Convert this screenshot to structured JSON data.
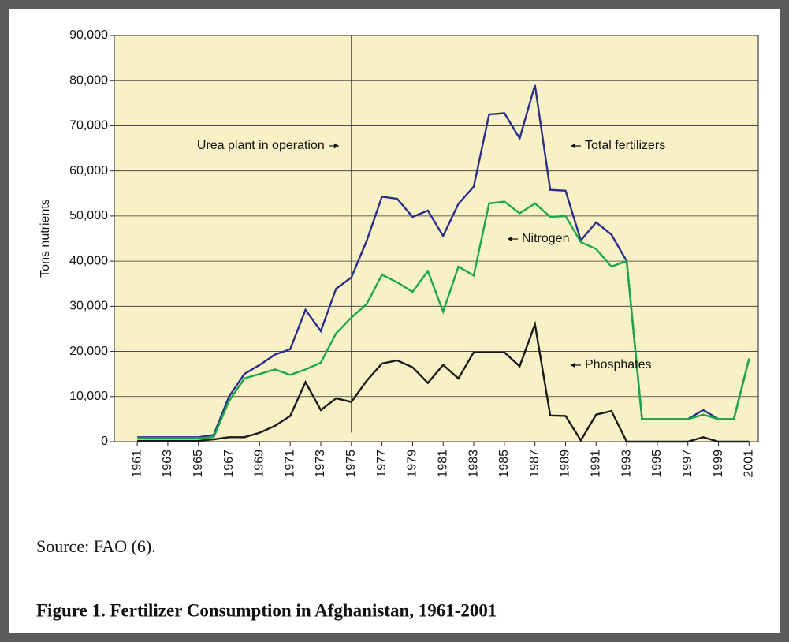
{
  "chart_data": {
    "type": "line",
    "title": "Figure 1. Fertilizer Consumption in Afghanistan, 1961-2001",
    "source": "Source: FAO (6).",
    "y_label": "Tons nutrients",
    "annotation": {
      "text": "Urea plant in operation",
      "x": 1975
    },
    "x": [
      1961,
      1962,
      1963,
      1964,
      1965,
      1966,
      1967,
      1968,
      1969,
      1970,
      1971,
      1972,
      1973,
      1974,
      1975,
      1976,
      1977,
      1978,
      1979,
      1980,
      1981,
      1982,
      1983,
      1984,
      1985,
      1986,
      1987,
      1988,
      1989,
      1990,
      1991,
      1992,
      1993,
      1994,
      1995,
      1996,
      1997,
      1998,
      1999,
      2000,
      2001
    ],
    "series": [
      {
        "name": "Total fertilizers",
        "color": "#2b2e8c",
        "values": [
          1000,
          1000,
          1000,
          1000,
          1000,
          1500,
          10000,
          15000,
          17000,
          19300,
          20500,
          29200,
          24500,
          33900,
          36400,
          44500,
          54300,
          53800,
          49800,
          51200,
          45600,
          52700,
          56500,
          72500,
          72800,
          67200,
          79000,
          55800,
          55600,
          44600,
          48600,
          45900,
          40000,
          5000,
          5000,
          5000,
          5000,
          7000,
          5000,
          5000,
          18400
        ]
      },
      {
        "name": "Nitrogen",
        "color": "#1aa84b",
        "values": [
          800,
          800,
          800,
          800,
          800,
          1000,
          9000,
          14000,
          15000,
          16000,
          14800,
          16000,
          17500,
          24000,
          27500,
          30500,
          37000,
          35300,
          33200,
          37800,
          28800,
          38800,
          36800,
          52800,
          53200,
          50600,
          52800,
          49800,
          50000,
          44200,
          42700,
          38800,
          40000,
          5000,
          5000,
          5000,
          5000,
          6000,
          5000,
          5000,
          18400
        ]
      },
      {
        "name": "Phosphates",
        "color": "#1a1a1a",
        "values": [
          200,
          200,
          200,
          200,
          200,
          500,
          1000,
          1000,
          2000,
          3500,
          5700,
          13200,
          7000,
          9600,
          8800,
          13500,
          17300,
          18000,
          16500,
          13000,
          17000,
          14000,
          19800,
          19800,
          19800,
          16700,
          26000,
          5800,
          5700,
          300,
          6000,
          6800,
          0,
          0,
          0,
          0,
          0,
          1000,
          0,
          0,
          0
        ]
      }
    ],
    "xlim": [
      1959.5,
      2001.6
    ],
    "xticks": [
      1961,
      1963,
      1965,
      1967,
      1969,
      1971,
      1973,
      1975,
      1977,
      1979,
      1981,
      1983,
      1985,
      1987,
      1989,
      1991,
      1993,
      1995,
      1997,
      1999,
      2001
    ],
    "ylim": [
      0,
      90000
    ],
    "yticks": [
      0,
      {
        "value": 10000,
        "label": "10,000"
      },
      {
        "value": 20000,
        "label": "20,000"
      },
      {
        "value": 30000,
        "label": "30,000"
      },
      {
        "value": 40000,
        "label": "40,000"
      },
      {
        "value": 50000,
        "label": "50,000"
      },
      {
        "value": 60000,
        "label": "60,000"
      },
      {
        "value": 70000,
        "label": "70,000"
      },
      {
        "value": 80000,
        "label": "80,000"
      },
      {
        "value": 90000,
        "label": "90,000"
      }
    ],
    "grid": true
  }
}
